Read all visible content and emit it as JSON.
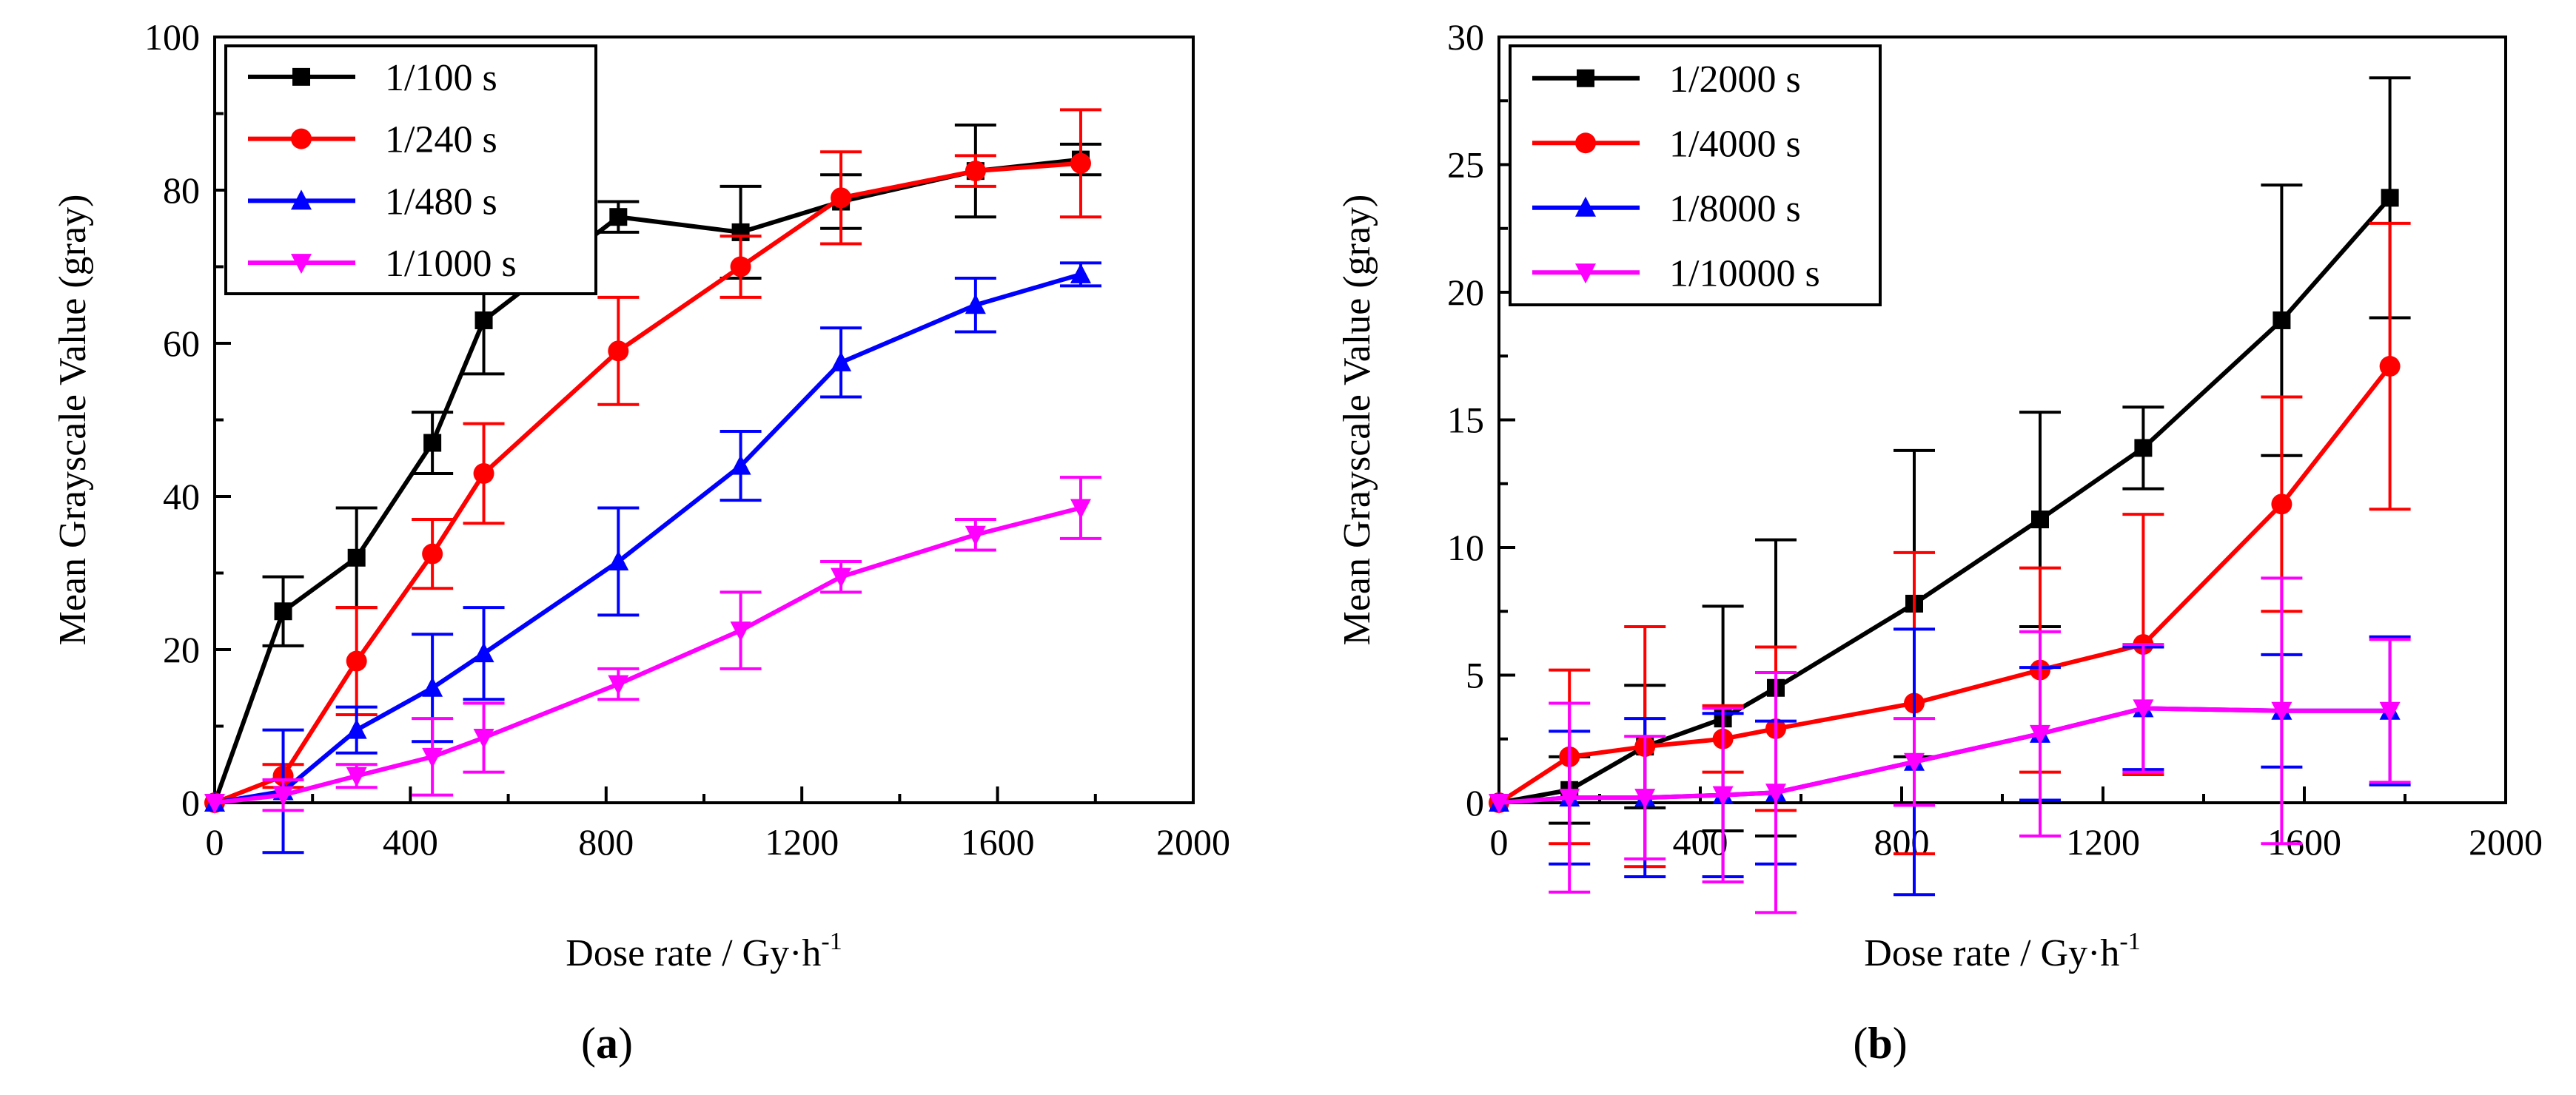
{
  "chart_data": [
    {
      "type": "line",
      "panel_label": "(a)",
      "xlabel": "Dose rate / Gy·h",
      "xlabel_superscript": "-1",
      "ylabel": "Mean Grayscale Value (gray)",
      "xlim": [
        0,
        2000
      ],
      "ylim": [
        0,
        100
      ],
      "xticks": [
        0,
        400,
        800,
        1200,
        1600,
        2000
      ],
      "yticks": [
        0,
        20,
        40,
        60,
        80,
        100
      ],
      "legend_position": "top-left",
      "series": [
        {
          "name": "1/100 s",
          "color": "#000000",
          "marker": "square",
          "x": [
            0,
            140,
            290,
            445,
            550,
            825,
            1075,
            1280,
            1555,
            1770
          ],
          "y": [
            0,
            25,
            32,
            47,
            63,
            76.5,
            74.5,
            78.5,
            82.5,
            84
          ],
          "err": [
            0,
            4.5,
            6.5,
            4,
            7,
            2,
            6,
            3.5,
            6,
            2
          ]
        },
        {
          "name": "1/240 s",
          "color": "#ff0000",
          "marker": "circle",
          "x": [
            0,
            140,
            290,
            445,
            550,
            825,
            1075,
            1280,
            1555,
            1770
          ],
          "y": [
            0,
            3.5,
            18.5,
            32.5,
            43,
            59,
            70,
            79,
            82.5,
            83.5
          ],
          "err": [
            0,
            1.5,
            7,
            4.5,
            6.5,
            7,
            4,
            6,
            2,
            7
          ]
        },
        {
          "name": "1/480 s",
          "color": "#0000ff",
          "marker": "triangle-up",
          "x": [
            0,
            140,
            290,
            445,
            550,
            825,
            1075,
            1280,
            1555,
            1770
          ],
          "y": [
            0,
            1.5,
            9.5,
            15,
            19.5,
            31.5,
            44,
            57.5,
            65,
            69
          ],
          "err": [
            0,
            8,
            3,
            7,
            6,
            7,
            4.5,
            4.5,
            3.5,
            1.5
          ]
        },
        {
          "name": "1/1000 s",
          "color": "#ff00ff",
          "marker": "triangle-down",
          "x": [
            0,
            140,
            290,
            445,
            550,
            825,
            1075,
            1280,
            1555,
            1770
          ],
          "y": [
            0,
            1,
            3.5,
            6,
            8.5,
            15.5,
            22.5,
            29.5,
            35,
            38.5
          ],
          "err": [
            0,
            2,
            1.5,
            5,
            4.5,
            2,
            5,
            2,
            2,
            4
          ]
        }
      ]
    },
    {
      "type": "line",
      "panel_label": "(b)",
      "xlabel": "Dose rate / Gy·h",
      "xlabel_superscript": "-1",
      "ylabel": "Mean Grayscale Value (gray)",
      "xlim": [
        0,
        2000
      ],
      "ylim": [
        0,
        30
      ],
      "xticks": [
        0,
        400,
        800,
        1200,
        1600,
        2000
      ],
      "yticks": [
        0,
        5,
        10,
        15,
        20,
        25,
        30
      ],
      "legend_position": "top-left",
      "series": [
        {
          "name": "1/2000 s",
          "color": "#000000",
          "marker": "square",
          "x": [
            0,
            140,
            290,
            445,
            550,
            825,
            1075,
            1280,
            1555,
            1770
          ],
          "y": [
            0,
            0.5,
            2.2,
            3.3,
            4.5,
            7.8,
            11.1,
            13.9,
            18.9,
            23.7
          ],
          "err": [
            0,
            1.3,
            2.4,
            4.4,
            5.8,
            6,
            4.2,
            1.6,
            5.3,
            4.7
          ]
        },
        {
          "name": "1/4000 s",
          "color": "#ff0000",
          "marker": "circle",
          "x": [
            0,
            140,
            290,
            445,
            550,
            825,
            1075,
            1280,
            1555,
            1770
          ],
          "y": [
            0,
            1.8,
            2.2,
            2.5,
            2.9,
            3.9,
            5.2,
            6.2,
            11.7,
            17.1
          ],
          "err": [
            0,
            3.4,
            4.7,
            1.3,
            3.2,
            5.9,
            4,
            5.1,
            4.2,
            5.6
          ]
        },
        {
          "name": "1/8000 s",
          "color": "#0000ff",
          "marker": "triangle-up",
          "x": [
            0,
            140,
            290,
            445,
            550,
            825,
            1075,
            1280,
            1555,
            1770
          ],
          "y": [
            0,
            0.2,
            0.2,
            0.3,
            0.4,
            1.6,
            2.7,
            3.7,
            3.6,
            3.6
          ],
          "err": [
            0,
            2.6,
            3.1,
            3.2,
            2.8,
            5.2,
            2.6,
            2.4,
            2.2,
            2.9
          ]
        },
        {
          "name": "1/10000 s",
          "color": "#ff00ff",
          "marker": "triangle-down",
          "x": [
            0,
            140,
            290,
            445,
            550,
            825,
            1075,
            1280,
            1555,
            1770
          ],
          "y": [
            0,
            0.2,
            0.2,
            0.3,
            0.4,
            1.6,
            2.7,
            3.7,
            3.6,
            3.6
          ],
          "err": [
            0,
            3.7,
            2.4,
            3.4,
            4.7,
            1.7,
            4,
            2.5,
            5.2,
            2.8
          ]
        }
      ]
    }
  ]
}
